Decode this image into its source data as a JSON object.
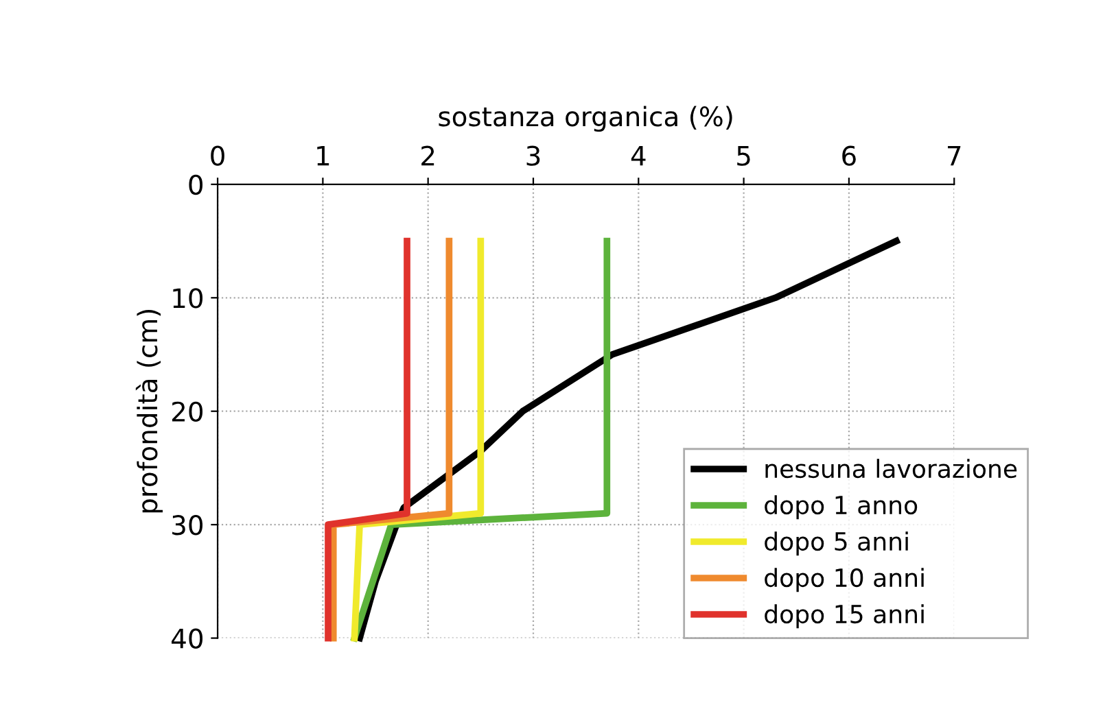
{
  "chart_data": {
    "type": "line",
    "xlabel": "sostanza organica (%)",
    "ylabel": "profondità (cm)",
    "xlim": [
      0,
      7
    ],
    "xticks": [
      0,
      1,
      2,
      3,
      4,
      5,
      6,
      7
    ],
    "ylim": [
      40,
      0
    ],
    "yticks": [
      0,
      10,
      20,
      30,
      40
    ],
    "grid": true,
    "legend": "bottom right",
    "marker": "none",
    "line_style": "solid",
    "series": [
      {
        "name": "nessuna lavorazione",
        "color": "#000000",
        "x": [
          6.45,
          5.3,
          3.75,
          2.9,
          2.5,
          1.77,
          1.7,
          1.5,
          1.35
        ],
        "values": [
          5,
          10,
          15,
          20,
          23.5,
          28.5,
          30,
          35,
          40
        ]
      },
      {
        "name": "dopo 1 anno",
        "color": "#5db33c",
        "x": [
          3.7,
          3.7,
          1.65,
          1.3
        ],
        "values": [
          5,
          29,
          30,
          40
        ]
      },
      {
        "name": "dopo 5 anni",
        "color": "#f0ea2c",
        "x": [
          2.5,
          2.5,
          1.35,
          1.3
        ],
        "values": [
          5,
          29,
          30,
          40
        ]
      },
      {
        "name": "dopo 10 anni",
        "color": "#ef8a2e",
        "x": [
          2.2,
          2.2,
          1.1,
          1.1
        ],
        "values": [
          5,
          29,
          30,
          40
        ]
      },
      {
        "name": "dopo 15 anni",
        "color": "#e0322c",
        "x": [
          1.8,
          1.8,
          1.05,
          1.05
        ],
        "values": [
          5,
          29,
          30,
          40
        ]
      }
    ]
  }
}
